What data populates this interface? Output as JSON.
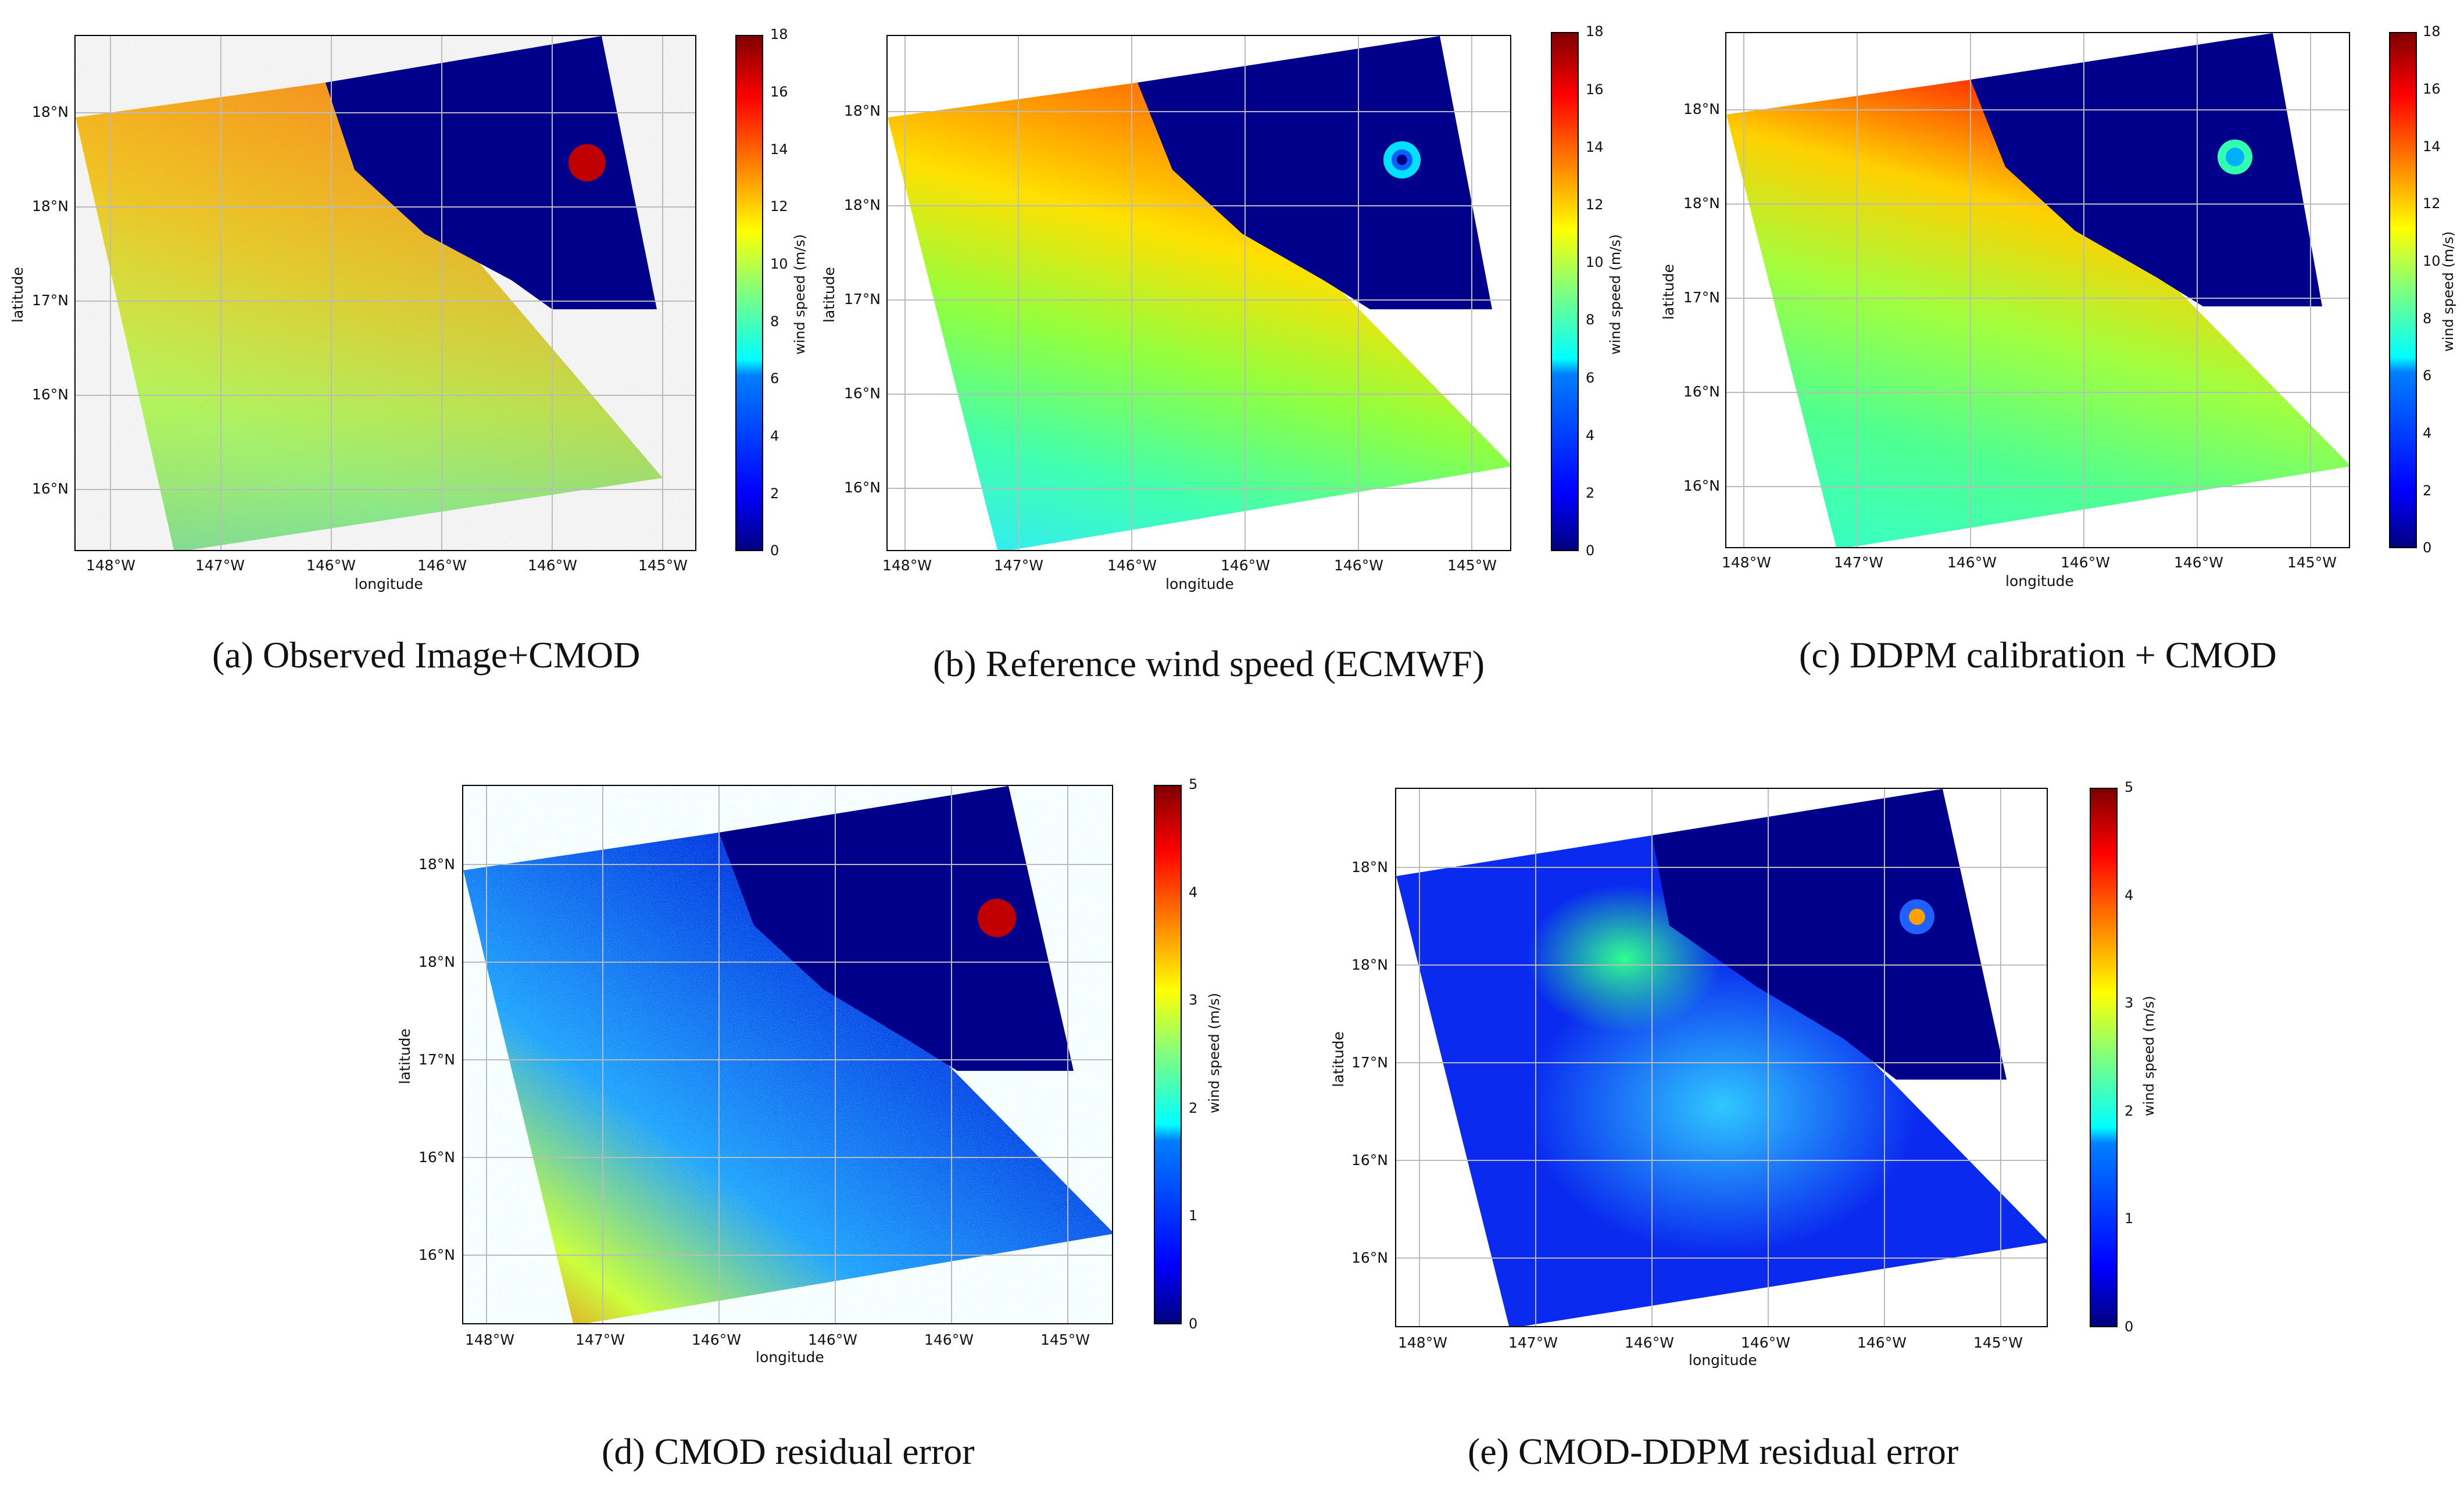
{
  "colormap": [
    "#00007f",
    "#0000ff",
    "#007fff",
    "#00ffff",
    "#7fff7f",
    "#ffff00",
    "#ff7f00",
    "#ff0000",
    "#7f0000"
  ],
  "land_color": "#00008b",
  "grid_color": "#bbbbbb",
  "common": {
    "x_ticks": [
      "148°W",
      "147°W",
      "146°W",
      "146°W",
      "146°W",
      "145°W"
    ],
    "y_ticks": [
      "18°N",
      "18°N",
      "17°N",
      "16°N",
      "16°N"
    ],
    "xlabel": "longitude",
    "ylabel": "latitude",
    "cbar_label": "wind speed (m/s)"
  },
  "panels": [
    {
      "id": "a",
      "caption": "(a) Observed Image+CMOD",
      "cbar_ticks": [
        "0",
        "2",
        "4",
        "6",
        "8",
        "10",
        "12",
        "14",
        "16",
        "18"
      ],
      "field": "wind_observed"
    },
    {
      "id": "b",
      "caption": "(b) Reference wind speed (ECMWF)",
      "cbar_ticks": [
        "0",
        "2",
        "4",
        "6",
        "8",
        "10",
        "12",
        "14",
        "16",
        "18"
      ],
      "field": "wind_reference"
    },
    {
      "id": "c",
      "caption": "(c) DDPM calibration + CMOD",
      "cbar_ticks": [
        "0",
        "2",
        "4",
        "6",
        "8",
        "10",
        "12",
        "14",
        "16",
        "18"
      ],
      "field": "wind_ddpm"
    },
    {
      "id": "d",
      "caption": "(d) CMOD residual error",
      "cbar_ticks": [
        "0",
        "1",
        "2",
        "3",
        "4",
        "5"
      ],
      "field": "residual_cmod"
    },
    {
      "id": "e",
      "caption": "(e) CMOD-DDPM residual error",
      "cbar_ticks": [
        "0",
        "1",
        "2",
        "3",
        "4",
        "5"
      ],
      "field": "residual_ddpm"
    }
  ]
}
